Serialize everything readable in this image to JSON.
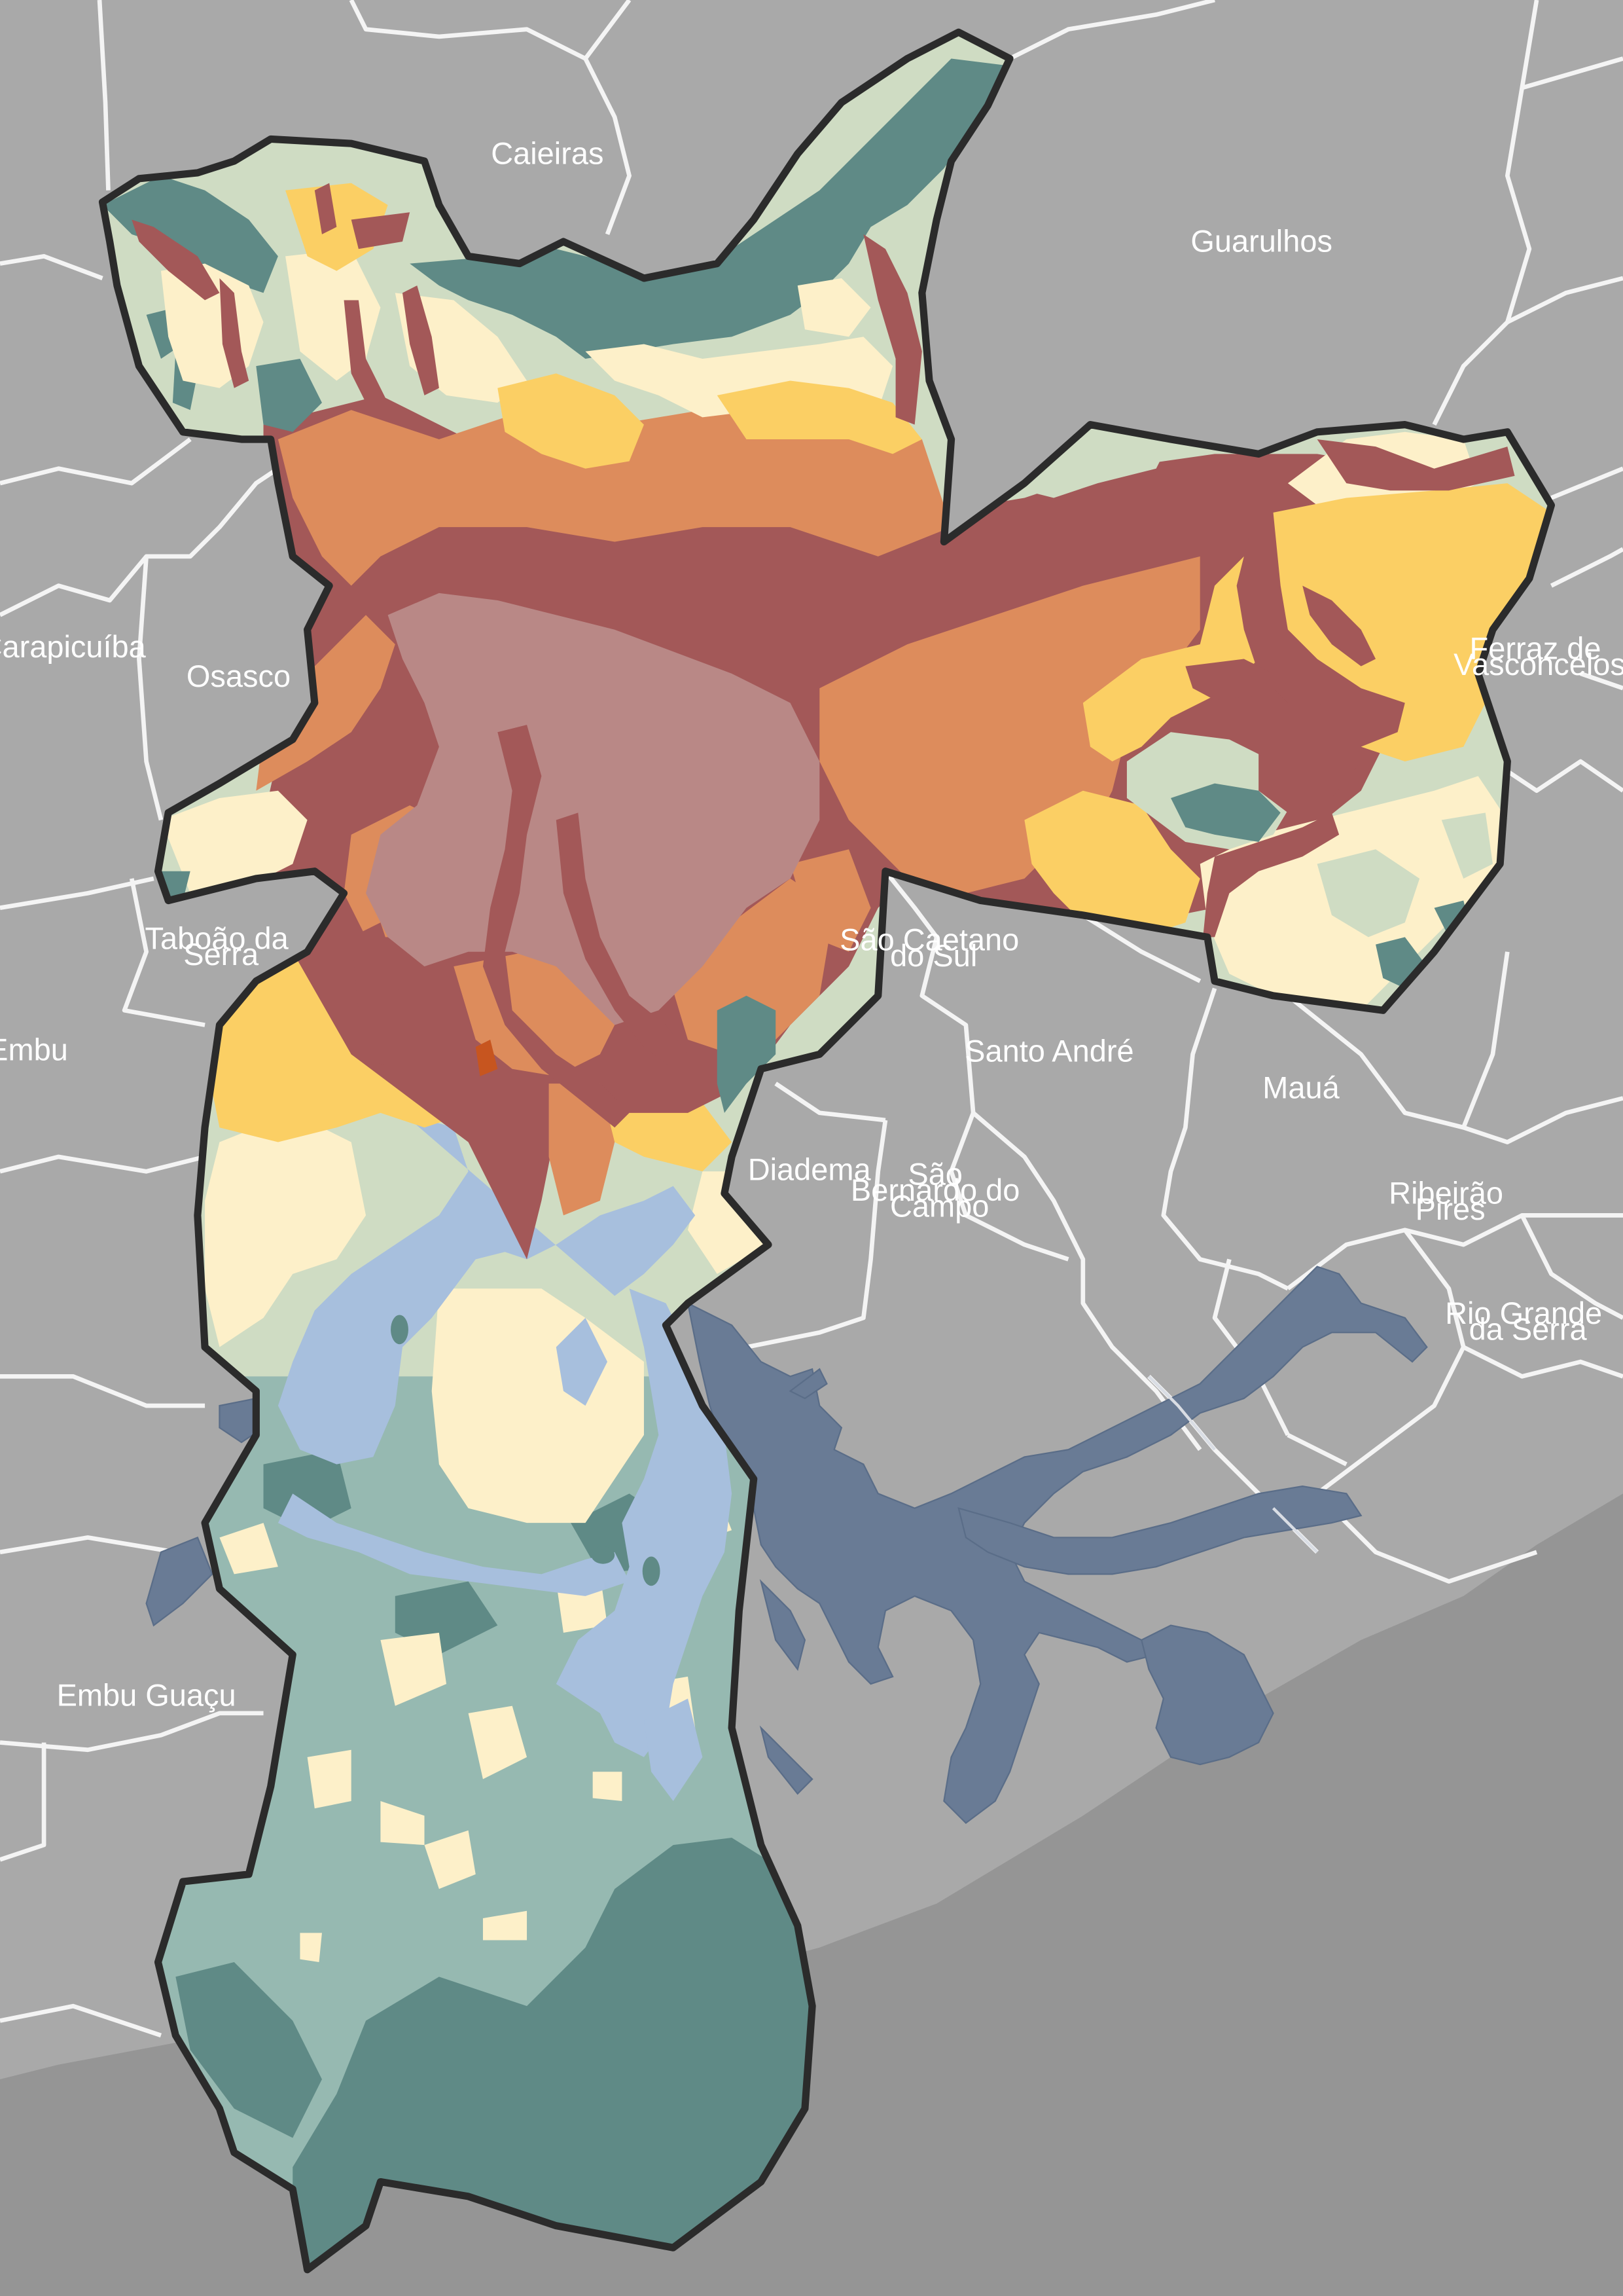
{
  "colors": {
    "background": "#a9a9a9",
    "serra_do_mar": "#959595",
    "municipal_boundary": "#f4f4f4",
    "city_outline": "#2b2b2b",
    "reservoir_outside": "#697b95",
    "reservoir_inside": "#a7bfdd",
    "zone_dark_teal": "#5f8a86",
    "zone_light_teal": "#96b9b1",
    "zone_pale_green": "#cfdcc3",
    "zone_cream": "#fdf0c9",
    "zone_yellow": "#fbcf64",
    "zone_orange": "#dd8c5c",
    "zone_dark_red": "#a35858",
    "zone_mauve": "#b98886",
    "zone_deep_orange": "#c7551f"
  },
  "municipalities": [
    {
      "id": "caieiras",
      "name": "Caieiras"
    },
    {
      "id": "guarulhos",
      "name": "Guarulhos"
    },
    {
      "id": "carapicuiba",
      "name": "Carapicuíba"
    },
    {
      "id": "osasco",
      "name": "Osasco"
    },
    {
      "id": "ferraz",
      "name": "Ferraz de Vasconcelos",
      "lines": [
        "Ferraz de",
        "Vasconcelos"
      ]
    },
    {
      "id": "taboao",
      "name": "Taboão da Serra",
      "lines": [
        "Taboão da",
        "Serra"
      ]
    },
    {
      "id": "sao-caetano",
      "name": "São Caetano do Sul",
      "lines": [
        "São Caetano",
        "do Sul"
      ]
    },
    {
      "id": "embu",
      "name": "Embu"
    },
    {
      "id": "santo-andre",
      "name": "Santo André"
    },
    {
      "id": "maua",
      "name": "Mauá"
    },
    {
      "id": "diadema",
      "name": "Diadema"
    },
    {
      "id": "sbc",
      "name": "São Bernardo do Campo",
      "lines": [
        "São",
        "Bernardo do",
        "Campo"
      ]
    },
    {
      "id": "ribeirao-pires",
      "name": "Ribeirão Pires",
      "lines": [
        "Ribeirão",
        "Pires"
      ]
    },
    {
      "id": "rio-grande",
      "name": "Rio Grande da Serra",
      "lines": [
        "Rio Grande",
        "da Serra"
      ]
    },
    {
      "id": "embu-guacu",
      "name": "Embu Guaçu"
    }
  ]
}
